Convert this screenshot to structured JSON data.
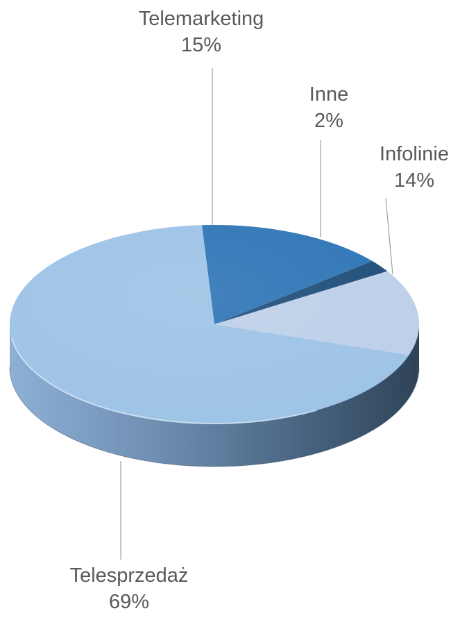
{
  "chart_data": {
    "type": "pie",
    "title": "",
    "categories": [
      "Telemarketing",
      "Inne",
      "Infolinie",
      "Telesprzedaż"
    ],
    "values": [
      15,
      2,
      14,
      69
    ],
    "value_labels": [
      "15%",
      "2%",
      "14%",
      "69%"
    ],
    "colors": [
      "#2e75b6",
      "#1f4e79",
      "#bdd0e8",
      "#9dc3e6"
    ],
    "style": "3d-pie",
    "legend": "none",
    "data_labels": "outside-with-leader-lines"
  }
}
